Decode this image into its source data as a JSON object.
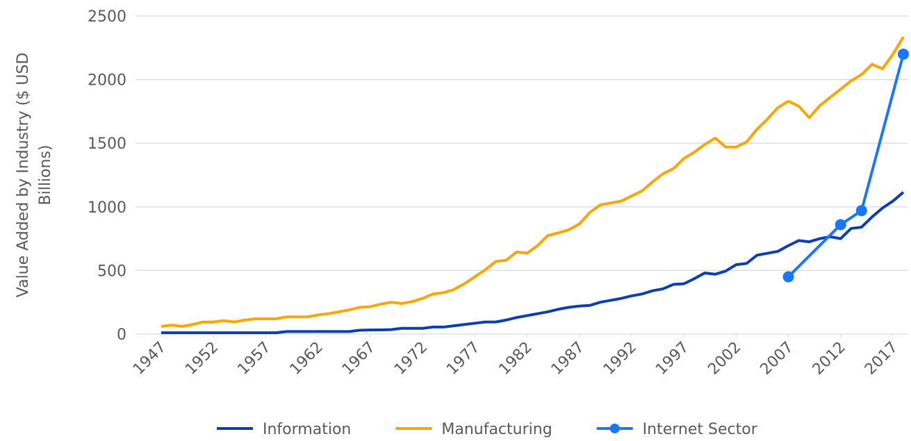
{
  "chart_data": {
    "type": "line",
    "ylabel": [
      "Value Added by Industry ($ USD",
      "Billions)"
    ],
    "xlim": [
      1947,
      2018
    ],
    "xticks": [
      1947,
      1952,
      1957,
      1962,
      1967,
      1972,
      1977,
      1982,
      1987,
      1992,
      1997,
      2002,
      2007,
      2012,
      2017
    ],
    "ylim": [
      0,
      2500
    ],
    "yticks": [
      0,
      500,
      1000,
      1500,
      2000,
      2500
    ],
    "grid": true,
    "legend": "bottom",
    "series": [
      {
        "name": "Information",
        "color": "#0b3fb0",
        "markers": false,
        "x": [
          1947,
          1948,
          1949,
          1950,
          1951,
          1952,
          1953,
          1954,
          1955,
          1956,
          1957,
          1958,
          1959,
          1960,
          1961,
          1962,
          1963,
          1964,
          1965,
          1966,
          1967,
          1968,
          1969,
          1970,
          1971,
          1972,
          1973,
          1974,
          1975,
          1976,
          1977,
          1978,
          1979,
          1980,
          1981,
          1982,
          1983,
          1984,
          1985,
          1986,
          1987,
          1988,
          1989,
          1990,
          1991,
          1992,
          1993,
          1994,
          1995,
          1996,
          1997,
          1998,
          1999,
          2000,
          2001,
          2002,
          2003,
          2004,
          2005,
          2006,
          2007,
          2008,
          2009,
          2010,
          2011,
          2012,
          2013,
          2014,
          2015,
          2016,
          2017,
          2018
        ],
        "values": [
          10,
          10,
          10,
          10,
          10,
          10,
          10,
          10,
          10,
          10,
          10,
          10,
          20,
          20,
          20,
          20,
          20,
          20,
          20,
          30,
          32,
          33,
          35,
          45,
          45,
          45,
          55,
          55,
          65,
          75,
          85,
          95,
          95,
          110,
          130,
          145,
          160,
          175,
          195,
          210,
          220,
          225,
          250,
          265,
          280,
          300,
          315,
          340,
          355,
          390,
          395,
          435,
          480,
          470,
          495,
          545,
          555,
          620,
          635,
          650,
          695,
          735,
          725,
          750,
          765,
          750,
          830,
          840,
          920,
          990,
          1045,
          1115
        ]
      },
      {
        "name": "Manufacturing",
        "color": "#ffa500",
        "markers": false,
        "x": [
          1947,
          1948,
          1949,
          1950,
          1951,
          1952,
          1953,
          1954,
          1955,
          1956,
          1957,
          1958,
          1959,
          1960,
          1961,
          1962,
          1963,
          1964,
          1965,
          1966,
          1967,
          1968,
          1969,
          1970,
          1971,
          1972,
          1973,
          1974,
          1975,
          1976,
          1977,
          1978,
          1979,
          1980,
          1981,
          1982,
          1983,
          1984,
          1985,
          1986,
          1987,
          1988,
          1989,
          1990,
          1991,
          1992,
          1993,
          1994,
          1995,
          1996,
          1997,
          1998,
          1999,
          2000,
          2001,
          2002,
          2003,
          2004,
          2005,
          2006,
          2007,
          2008,
          2009,
          2010,
          2011,
          2012,
          2013,
          2014,
          2015,
          2016,
          2017,
          2018
        ],
        "values": [
          60,
          70,
          60,
          75,
          95,
          95,
          105,
          95,
          110,
          120,
          120,
          120,
          135,
          135,
          135,
          150,
          160,
          175,
          190,
          210,
          215,
          235,
          250,
          240,
          255,
          280,
          315,
          325,
          350,
          395,
          450,
          505,
          570,
          580,
          645,
          635,
          695,
          775,
          795,
          820,
          865,
          955,
          1015,
          1030,
          1045,
          1085,
          1125,
          1195,
          1260,
          1300,
          1380,
          1430,
          1490,
          1540,
          1470,
          1470,
          1510,
          1610,
          1690,
          1780,
          1830,
          1790,
          1700,
          1795,
          1860,
          1925,
          1990,
          2040,
          2120,
          2085,
          2200,
          2335
        ]
      },
      {
        "name": "Internet Sector",
        "color": "#1a75ff",
        "markers": true,
        "x": [
          2007,
          2012,
          2014,
          2018
        ],
        "values": [
          450,
          860,
          970,
          2200
        ]
      }
    ]
  }
}
